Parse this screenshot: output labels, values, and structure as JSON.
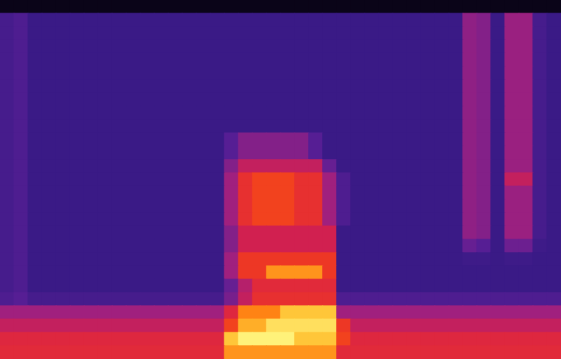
{
  "chart_data": {
    "type": "heatmap",
    "tick_labels": false,
    "grid": false,
    "cells": [
      [
        15,
        15,
        15,
        15,
        15,
        15,
        15,
        15,
        15,
        15,
        15,
        15,
        15,
        15,
        15,
        15,
        15,
        15,
        15,
        15,
        15,
        15,
        15,
        15,
        15,
        15,
        15,
        15,
        15,
        15,
        15,
        15,
        15,
        15,
        15,
        15,
        15,
        15,
        15,
        15
      ],
      [
        38,
        40,
        35,
        35,
        35,
        35,
        35,
        35,
        35,
        35,
        35,
        35,
        35,
        35,
        35,
        35,
        35,
        35,
        35,
        35,
        35,
        35,
        35,
        35,
        35,
        35,
        35,
        35,
        35,
        35,
        35,
        35,
        35,
        52,
        50,
        35,
        54,
        54,
        38,
        35
      ],
      [
        38,
        40,
        35,
        35,
        35,
        35,
        35,
        35,
        35,
        35,
        35,
        35,
        35,
        35,
        35,
        35,
        35,
        35,
        35,
        35,
        35,
        35,
        35,
        35,
        35,
        35,
        35,
        35,
        35,
        35,
        35,
        35,
        35,
        52,
        50,
        35,
        54,
        54,
        38,
        35
      ],
      [
        38,
        40,
        35,
        35,
        35,
        35,
        35,
        35,
        35,
        35,
        35,
        35,
        35,
        35,
        35,
        35,
        35,
        35,
        35,
        35,
        35,
        35,
        35,
        35,
        35,
        35,
        35,
        35,
        35,
        35,
        35,
        35,
        35,
        52,
        50,
        35,
        54,
        54,
        38,
        35
      ],
      [
        38,
        40,
        35,
        35,
        35,
        35,
        35,
        35,
        35,
        35,
        35,
        35,
        35,
        35,
        35,
        35,
        35,
        35,
        35,
        35,
        35,
        35,
        35,
        35,
        35,
        35,
        35,
        35,
        35,
        35,
        35,
        35,
        35,
        52,
        50,
        35,
        54,
        54,
        38,
        35
      ],
      [
        38,
        40,
        35,
        35,
        35,
        35,
        35,
        35,
        35,
        35,
        35,
        35,
        35,
        35,
        35,
        35,
        35,
        35,
        35,
        35,
        35,
        35,
        35,
        35,
        35,
        35,
        35,
        35,
        35,
        35,
        35,
        35,
        35,
        52,
        50,
        35,
        54,
        54,
        38,
        35
      ],
      [
        38,
        40,
        35,
        35,
        35,
        35,
        35,
        35,
        35,
        35,
        35,
        35,
        35,
        35,
        35,
        35,
        35,
        35,
        35,
        35,
        35,
        35,
        35,
        35,
        35,
        35,
        35,
        35,
        35,
        35,
        35,
        35,
        35,
        52,
        50,
        35,
        54,
        54,
        38,
        35
      ],
      [
        38,
        40,
        35,
        35,
        35,
        35,
        35,
        35,
        35,
        35,
        35,
        35,
        35,
        35,
        35,
        35,
        35,
        35,
        35,
        35,
        35,
        35,
        35,
        35,
        35,
        35,
        35,
        35,
        35,
        35,
        35,
        35,
        35,
        52,
        50,
        35,
        54,
        54,
        38,
        35
      ],
      [
        38,
        40,
        35,
        35,
        35,
        35,
        35,
        35,
        35,
        35,
        35,
        35,
        35,
        35,
        35,
        35,
        35,
        35,
        35,
        35,
        35,
        35,
        35,
        35,
        35,
        35,
        35,
        35,
        35,
        35,
        35,
        35,
        35,
        52,
        50,
        35,
        54,
        54,
        38,
        35
      ],
      [
        38,
        40,
        35,
        35,
        35,
        35,
        35,
        35,
        35,
        35,
        35,
        35,
        35,
        35,
        35,
        35,
        35,
        35,
        35,
        35,
        35,
        35,
        35,
        35,
        35,
        35,
        35,
        35,
        35,
        35,
        35,
        35,
        35,
        52,
        50,
        35,
        54,
        54,
        38,
        35
      ],
      [
        38,
        40,
        35,
        35,
        35,
        35,
        35,
        35,
        35,
        35,
        35,
        35,
        35,
        35,
        35,
        35,
        42,
        50,
        50,
        50,
        50,
        50,
        42,
        35,
        35,
        35,
        35,
        35,
        35,
        35,
        35,
        35,
        35,
        52,
        50,
        35,
        54,
        54,
        38,
        35
      ],
      [
        38,
        40,
        35,
        35,
        35,
        35,
        35,
        35,
        35,
        35,
        35,
        35,
        35,
        35,
        35,
        35,
        42,
        50,
        50,
        50,
        50,
        50,
        42,
        35,
        35,
        35,
        35,
        35,
        35,
        35,
        35,
        35,
        35,
        52,
        50,
        35,
        54,
        54,
        38,
        35
      ],
      [
        38,
        40,
        35,
        35,
        35,
        35,
        35,
        35,
        35,
        35,
        35,
        35,
        35,
        35,
        35,
        35,
        50,
        60,
        60,
        60,
        60,
        60,
        60,
        45,
        35,
        35,
        35,
        35,
        35,
        35,
        35,
        35,
        35,
        52,
        50,
        35,
        54,
        54,
        38,
        35
      ],
      [
        38,
        40,
        35,
        35,
        35,
        35,
        35,
        35,
        35,
        35,
        35,
        35,
        35,
        35,
        35,
        35,
        55,
        68,
        72,
        72,
        72,
        68,
        68,
        55,
        40,
        35,
        35,
        35,
        35,
        35,
        35,
        35,
        35,
        52,
        50,
        35,
        60,
        60,
        38,
        35
      ],
      [
        38,
        40,
        35,
        35,
        35,
        35,
        35,
        35,
        35,
        35,
        35,
        35,
        35,
        35,
        35,
        35,
        55,
        68,
        72,
        72,
        72,
        68,
        68,
        55,
        40,
        35,
        35,
        35,
        35,
        35,
        35,
        35,
        35,
        52,
        50,
        35,
        54,
        54,
        38,
        35
      ],
      [
        38,
        40,
        35,
        35,
        35,
        35,
        35,
        35,
        35,
        35,
        35,
        35,
        35,
        35,
        35,
        35,
        55,
        68,
        72,
        72,
        72,
        68,
        68,
        55,
        40,
        35,
        35,
        35,
        35,
        35,
        35,
        35,
        35,
        52,
        50,
        35,
        54,
        54,
        38,
        35
      ],
      [
        38,
        40,
        35,
        35,
        35,
        35,
        35,
        35,
        35,
        35,
        35,
        35,
        35,
        35,
        35,
        35,
        55,
        68,
        72,
        72,
        72,
        68,
        68,
        55,
        40,
        35,
        35,
        35,
        35,
        35,
        35,
        35,
        35,
        52,
        50,
        35,
        54,
        54,
        38,
        35
      ],
      [
        38,
        40,
        35,
        35,
        35,
        35,
        35,
        35,
        35,
        35,
        35,
        35,
        35,
        35,
        35,
        35,
        50,
        62,
        62,
        62,
        62,
        62,
        62,
        62,
        35,
        35,
        35,
        35,
        35,
        35,
        35,
        35,
        35,
        52,
        50,
        35,
        54,
        54,
        38,
        35
      ],
      [
        38,
        40,
        35,
        35,
        35,
        35,
        35,
        35,
        35,
        35,
        35,
        35,
        35,
        35,
        35,
        35,
        50,
        62,
        62,
        62,
        62,
        62,
        62,
        62,
        35,
        35,
        35,
        35,
        35,
        35,
        35,
        35,
        35,
        45,
        42,
        35,
        46,
        46,
        36,
        35
      ],
      [
        38,
        40,
        35,
        35,
        35,
        35,
        35,
        35,
        35,
        35,
        35,
        35,
        35,
        35,
        35,
        35,
        55,
        70,
        70,
        70,
        70,
        70,
        70,
        70,
        35,
        35,
        35,
        35,
        35,
        35,
        35,
        35,
        35,
        36,
        36,
        35,
        36,
        36,
        35,
        35
      ],
      [
        38,
        40,
        35,
        35,
        35,
        35,
        35,
        35,
        35,
        35,
        35,
        35,
        35,
        35,
        35,
        35,
        55,
        70,
        70,
        82,
        82,
        82,
        82,
        70,
        35,
        35,
        35,
        35,
        35,
        35,
        35,
        35,
        35,
        35,
        35,
        35,
        35,
        35,
        35,
        35
      ],
      [
        38,
        40,
        35,
        35,
        35,
        35,
        35,
        35,
        35,
        35,
        35,
        35,
        35,
        35,
        35,
        35,
        45,
        58,
        66,
        66,
        66,
        66,
        66,
        66,
        35,
        35,
        35,
        35,
        35,
        35,
        35,
        35,
        35,
        35,
        35,
        35,
        35,
        35,
        35,
        35
      ],
      [
        40,
        42,
        38,
        38,
        38,
        38,
        38,
        38,
        38,
        38,
        38,
        38,
        38,
        38,
        38,
        38,
        48,
        60,
        68,
        68,
        68,
        68,
        68,
        68,
        40,
        40,
        40,
        40,
        40,
        40,
        40,
        40,
        40,
        40,
        40,
        40,
        40,
        40,
        40,
        40
      ],
      [
        55,
        55,
        55,
        55,
        55,
        55,
        55,
        55,
        55,
        55,
        55,
        55,
        55,
        55,
        55,
        55,
        65,
        80,
        80,
        80,
        88,
        88,
        88,
        88,
        55,
        55,
        55,
        55,
        55,
        55,
        55,
        55,
        55,
        55,
        55,
        55,
        55,
        55,
        55,
        55
      ],
      [
        60,
        60,
        60,
        60,
        60,
        60,
        60,
        60,
        60,
        60,
        60,
        60,
        60,
        60,
        60,
        60,
        72,
        85,
        85,
        92,
        92,
        92,
        92,
        92,
        70,
        60,
        60,
        60,
        60,
        60,
        60,
        60,
        60,
        60,
        60,
        60,
        60,
        60,
        60,
        60
      ],
      [
        65,
        65,
        65,
        65,
        65,
        65,
        65,
        65,
        65,
        65,
        65,
        65,
        65,
        65,
        65,
        65,
        88,
        95,
        95,
        95,
        95,
        88,
        88,
        88,
        72,
        65,
        65,
        65,
        65,
        65,
        65,
        65,
        65,
        65,
        65,
        65,
        65,
        65,
        65,
        65
      ],
      [
        66,
        66,
        66,
        66,
        66,
        66,
        66,
        66,
        66,
        66,
        66,
        66,
        66,
        66,
        66,
        66,
        82,
        82,
        82,
        82,
        82,
        82,
        82,
        82,
        66,
        66,
        66,
        66,
        66,
        66,
        66,
        66,
        66,
        66,
        66,
        66,
        66,
        66,
        66,
        66
      ]
    ]
  }
}
